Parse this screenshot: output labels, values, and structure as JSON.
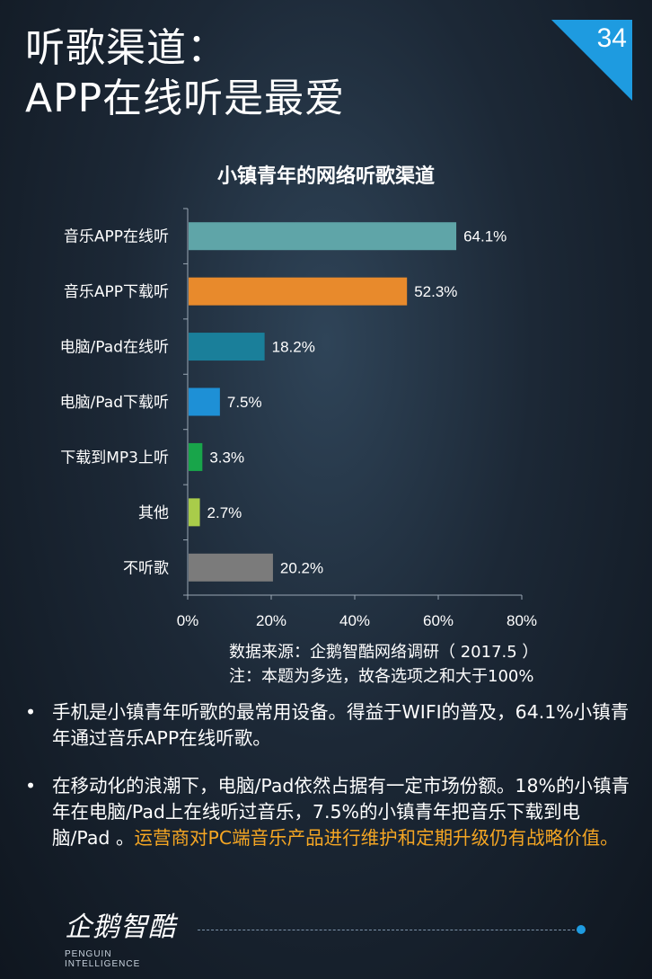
{
  "header": {
    "title_line1": "听歌渠道：",
    "title_line2": "APP在线听是最爱",
    "page_number": "34",
    "corner_color": "#1e9be0"
  },
  "chart_data": {
    "type": "bar",
    "orientation": "horizontal",
    "title": "小镇青年的网络听歌渠道",
    "categories": [
      "音乐APP在线听",
      "音乐APP下载听",
      "电脑/Pad在线听",
      "电脑/Pad下载听",
      "下载到MP3上听",
      "其他",
      "不听歌"
    ],
    "values": [
      64.1,
      52.3,
      18.2,
      7.5,
      3.3,
      2.7,
      20.2
    ],
    "value_labels": [
      "64.1%",
      "52.3%",
      "18.2%",
      "7.5%",
      "3.3%",
      "2.7%",
      "20.2%"
    ],
    "colors": [
      "#5fa5a8",
      "#e88a2c",
      "#1a7f9a",
      "#1e90d6",
      "#18a54a",
      "#a9cc4a",
      "#7b7b7b"
    ],
    "xlim": [
      0,
      80
    ],
    "xticks": [
      0,
      20,
      40,
      60,
      80
    ],
    "xtick_labels": [
      "0%",
      "20%",
      "40%",
      "60%",
      "80%"
    ],
    "grid": false,
    "legend": "none"
  },
  "source": {
    "line1": "数据来源：企鹅智酷网络调研（ 2017.5 ）",
    "line2": "注：本题为多选，故各选项之和大于100%"
  },
  "bullets": [
    {
      "dot": "•",
      "text": "手机是小镇青年听歌的最常用设备。得益于WIFI的普及，64.1%小镇青年通过音乐APP在线听歌。",
      "highlight": ""
    },
    {
      "dot": "•",
      "text": "在移动化的浪潮下，电脑/Pad依然占据有一定市场份额。18%的小镇青年在电脑/Pad上在线听过音乐，7.5%的小镇青年把音乐下载到电脑/Pad 。",
      "highlight": "运营商对PC端音乐产品进行维护和定期升级仍有战略价值。"
    }
  ],
  "footer": {
    "logo_text": "企鹅智酷",
    "logo_subtext": "PENGUIN INTELLIGENCE"
  }
}
